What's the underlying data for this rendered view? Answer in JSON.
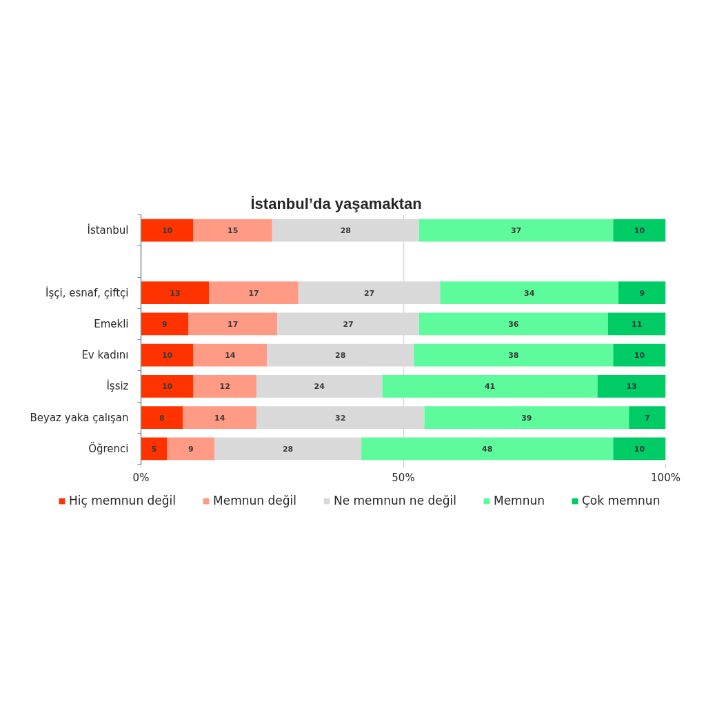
{
  "chart_data": {
    "type": "bar",
    "title": "İstanbul’da yaşamaktan",
    "orientation": "horizontal",
    "stacked": true,
    "categories": [
      "İstanbul",
      null,
      "İşçi, esnaf, çiftçi",
      "Emekli",
      "Ev kadını",
      "İşsiz",
      "Beyaz yaka çalışan",
      "Öğrenci"
    ],
    "series": [
      {
        "name": "Hiç memnun değil",
        "color": "#ff3300",
        "values": [
          10,
          null,
          13,
          9,
          10,
          10,
          8,
          5
        ]
      },
      {
        "name": "Memnun değil",
        "color": "#ff9a85",
        "values": [
          15,
          null,
          17,
          17,
          14,
          12,
          14,
          9
        ]
      },
      {
        "name": "Ne memnun ne değil",
        "color": "#d9d9d9",
        "values": [
          28,
          null,
          27,
          27,
          28,
          24,
          32,
          28
        ]
      },
      {
        "name": "Memnun",
        "color": "#5dfb9c",
        "values": [
          37,
          null,
          34,
          36,
          38,
          41,
          39,
          48
        ]
      },
      {
        "name": "Çok memnun",
        "color": "#00cc66",
        "values": [
          10,
          null,
          9,
          11,
          10,
          13,
          7,
          10
        ]
      }
    ],
    "xlim": [
      0,
      100
    ],
    "xticks": [
      {
        "value": 0,
        "label": "0%"
      },
      {
        "value": 50,
        "label": "50%"
      },
      {
        "value": 100,
        "label": "100%"
      }
    ],
    "grid": "x",
    "legend": "bottom",
    "data_labels": true
  }
}
